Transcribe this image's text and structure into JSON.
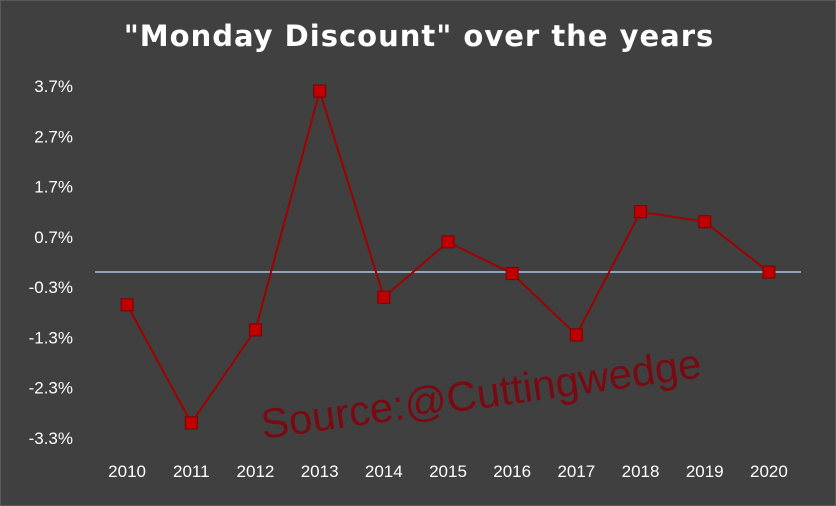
{
  "chart_data": {
    "type": "line",
    "title": "\"Monday Discount\" over the years",
    "xlabel": "",
    "ylabel": "",
    "categories": [
      "2010",
      "2011",
      "2012",
      "2013",
      "2014",
      "2015",
      "2016",
      "2017",
      "2018",
      "2019",
      "2020"
    ],
    "series": [
      {
        "values": [
          -0.65,
          -3.0,
          -1.15,
          3.6,
          -0.5,
          0.6,
          -0.03,
          -1.25,
          1.2,
          1.0,
          0.0
        ]
      }
    ],
    "ylim": [
      -3.3,
      3.7
    ],
    "yticks": [
      3.7,
      2.7,
      1.7,
      0.7,
      -0.3,
      -1.3,
      -2.3,
      -3.3
    ],
    "ytick_labels": [
      "3.7%",
      "2.7%",
      "1.7%",
      "0.7%",
      "-0.3%",
      "-1.3%",
      "-2.3%",
      "-3.3%"
    ],
    "grid": false,
    "legend": "none",
    "baseline_value": 0.0,
    "colors": {
      "series": "#c00000",
      "line": "#a00000",
      "baseline": "#a9c4e8",
      "background": "#404040"
    }
  },
  "watermark": "Source:@Cuttingwedge"
}
